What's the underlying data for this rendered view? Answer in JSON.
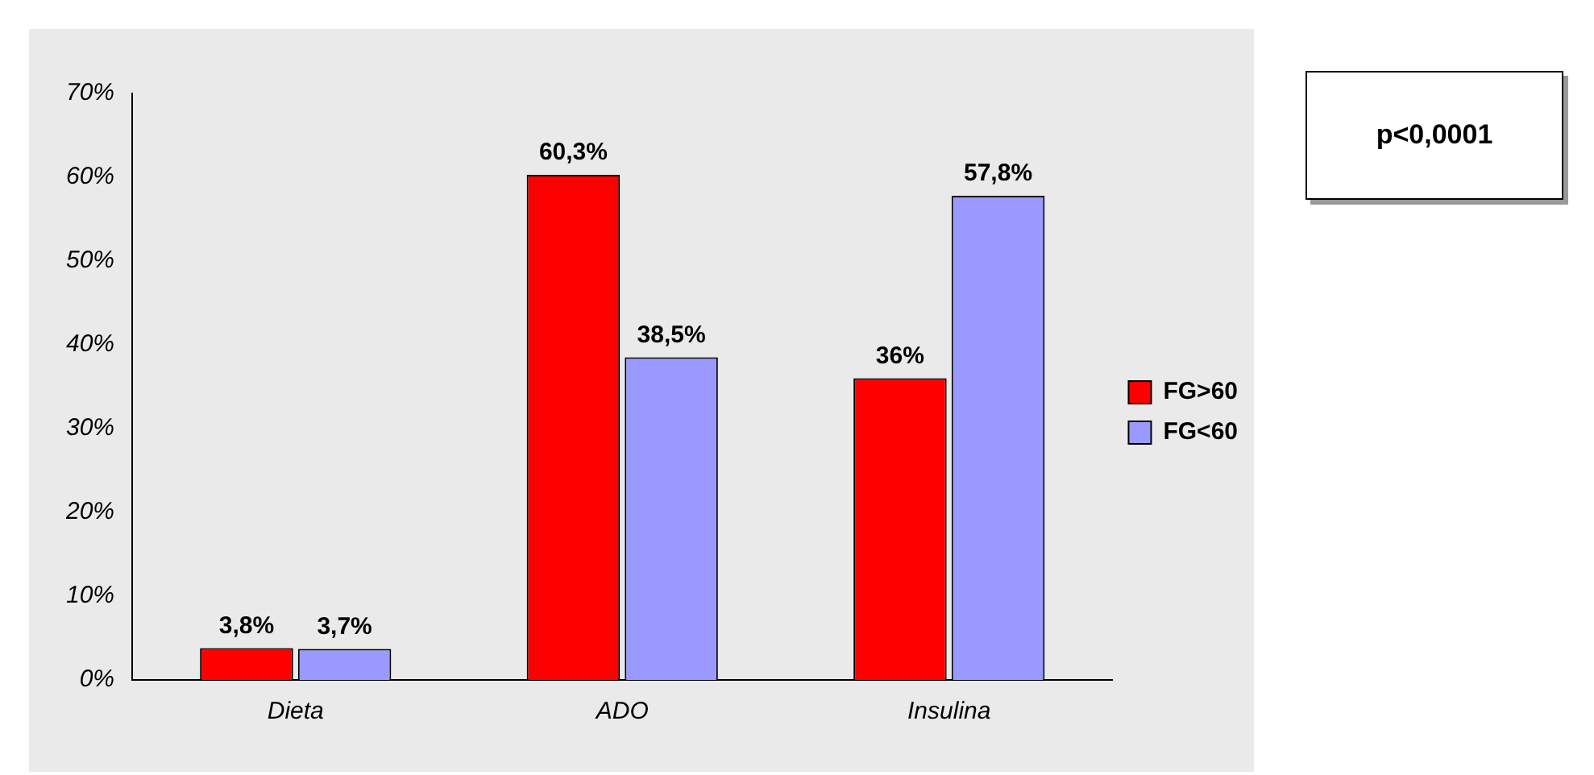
{
  "chart_data": {
    "type": "bar",
    "categories": [
      "Dieta",
      "ADO",
      "Insulina"
    ],
    "series": [
      {
        "name": "FG>60",
        "color": "#ff0000",
        "values": [
          3.8,
          60.3,
          36
        ],
        "value_labels": [
          "3,8%",
          "60,3%",
          "36%"
        ]
      },
      {
        "name": "FG<60",
        "color": "#9999ff",
        "values": [
          3.7,
          38.5,
          57.8
        ],
        "value_labels": [
          "3,7%",
          "38,5%",
          "57,8%"
        ]
      }
    ],
    "ylim": [
      0,
      70
    ],
    "yticks": [
      {
        "value": 0,
        "label": "0%"
      },
      {
        "value": 10,
        "label": "10%"
      },
      {
        "value": 20,
        "label": "20%"
      },
      {
        "value": 30,
        "label": "30%"
      },
      {
        "value": 40,
        "label": "40%"
      },
      {
        "value": 50,
        "label": "50%"
      },
      {
        "value": 60,
        "label": "60%"
      },
      {
        "value": 70,
        "label": "70%"
      }
    ],
    "legend": "right",
    "grid": false,
    "annotations": [
      "p<0,0001"
    ]
  }
}
